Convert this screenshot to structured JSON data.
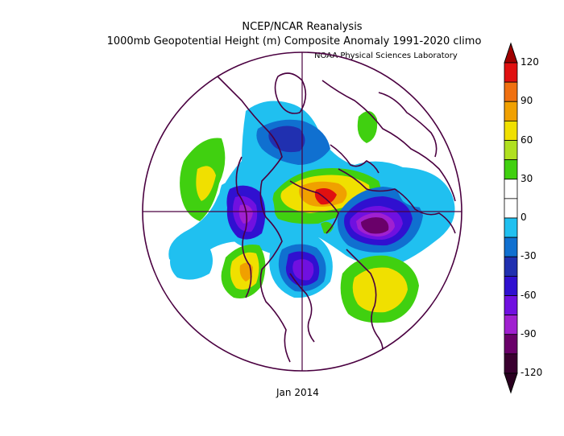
{
  "title_line1": "NCEP/NCAR Reanalysis",
  "title_line2": "1000mb Geopotential Height (m) Composite Anomaly 1991-2020 climo",
  "credit": "NOAA Physical Sciences Laboratory",
  "subtitle": "Jan 2014",
  "colorbar": {
    "labels": [
      "120",
      "90",
      "60",
      "30",
      "0",
      "-30",
      "-60",
      "-90",
      "-120"
    ],
    "colors": [
      "#e01010",
      "#f07010",
      "#f0a000",
      "#f0e000",
      "#b0e020",
      "#40d010",
      "#ffffff",
      "#ffffff",
      "#20c0f0",
      "#1070d0",
      "#2030b0",
      "#3010d0",
      "#7010e0",
      "#a020d0",
      "#6a006a",
      "#3a0030"
    ]
  },
  "colors": {
    "boundary": "#4a0040"
  }
}
